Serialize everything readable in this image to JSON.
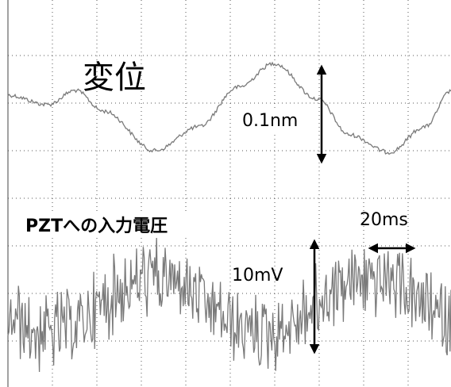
{
  "labels": {
    "displacement": "変位",
    "displacement_scale": "0.1nm",
    "voltage": "PZTへの入力電圧",
    "time_scale": "20ms",
    "voltage_scale": "10mV"
  }
}
